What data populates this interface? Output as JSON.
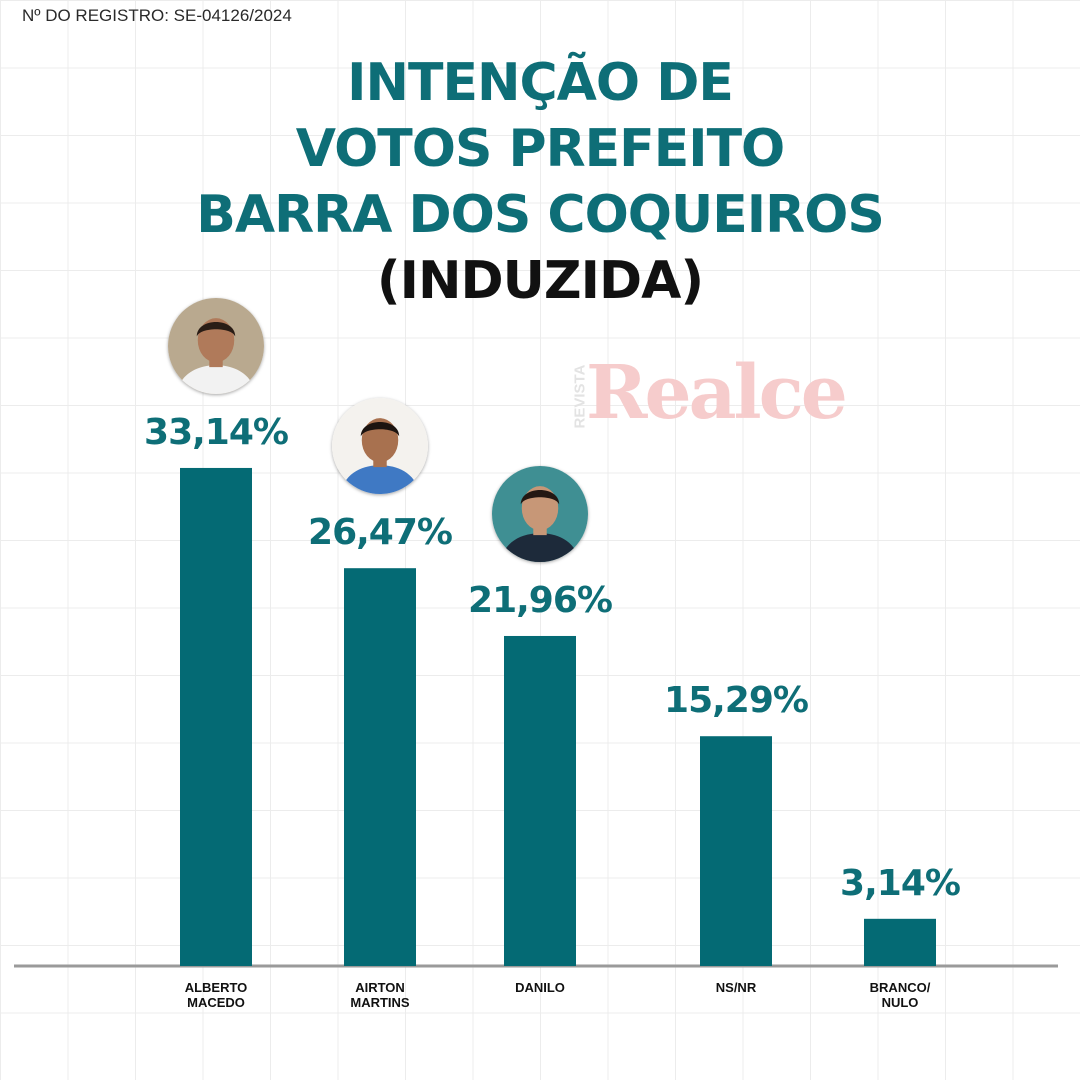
{
  "registro": "Nº DO REGISTRO: SE-04126/2024",
  "title": {
    "lines": [
      "INTENÇÃO DE",
      "VOTOS PREFEITO",
      "BARRA DOS COQUEIROS"
    ],
    "subtitle": "(INDUZIDA)"
  },
  "watermark": {
    "word": "Realce",
    "small": "REVISTA"
  },
  "colors": {
    "bar": "#046a74",
    "title": "#0e6e77",
    "value_label": "#0e6e77",
    "subtitle": "#111111",
    "axis": "#9a9a9a"
  },
  "chart_data": {
    "type": "bar",
    "categories": [
      [
        "ALBERTO",
        "MACEDO"
      ],
      [
        "AIRTON",
        "MARTINS"
      ],
      [
        "DANILO"
      ],
      [
        "NS/NR"
      ],
      [
        "BRANCO/",
        "NULO"
      ]
    ],
    "values": [
      33.14,
      26.47,
      21.96,
      15.29,
      3.14
    ],
    "value_labels": [
      "33,14%",
      "26,47%",
      "21,96%",
      "15,29%",
      "3,14%"
    ],
    "avatars": [
      "candidate-photo",
      "candidate-photo",
      "candidate-photo",
      null,
      null
    ],
    "ylim": [
      0,
      35
    ],
    "grid": true
  }
}
